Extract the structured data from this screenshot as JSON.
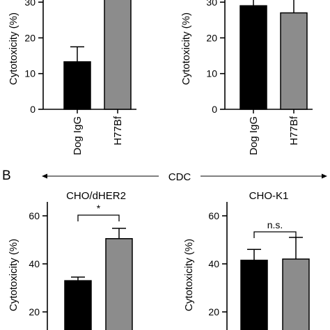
{
  "section_b_label": "B",
  "cdc_label": "CDC",
  "chart_data": [
    {
      "type": "bar",
      "categories": [
        "Dog IgG",
        "H77Bf"
      ],
      "values": [
        13.3,
        36
      ],
      "errors": [
        4.2,
        null
      ],
      "ylabel": "Cytotoxicity (%)",
      "yticks": [
        0,
        10,
        20,
        30
      ],
      "colors": [
        "#000000",
        "#8c8c8c"
      ]
    },
    {
      "type": "bar",
      "categories": [
        "Dog IgG",
        "H77Bf"
      ],
      "values": [
        29,
        27
      ],
      "errors": [
        3,
        5
      ],
      "ylabel": "Cytotoxicity (%)",
      "yticks": [
        0,
        10,
        20,
        30
      ],
      "colors": [
        "#000000",
        "#8c8c8c"
      ]
    },
    {
      "type": "bar",
      "title": "CHO/dHER2",
      "values": [
        33,
        50.5
      ],
      "errors": [
        1.5,
        4.3
      ],
      "ylabel": "Cytotoxicity (%)",
      "yticks": [
        20,
        40,
        60
      ],
      "significance": "*",
      "colors": [
        "#000000",
        "#8c8c8c"
      ]
    },
    {
      "type": "bar",
      "title": "CHO-K1",
      "values": [
        41.5,
        42
      ],
      "errors": [
        4.5,
        9
      ],
      "ylabel": "Cytotoxicity (%)",
      "yticks": [
        20,
        40,
        60
      ],
      "significance": "n.s.",
      "colors": [
        "#000000",
        "#8c8c8c"
      ]
    }
  ]
}
